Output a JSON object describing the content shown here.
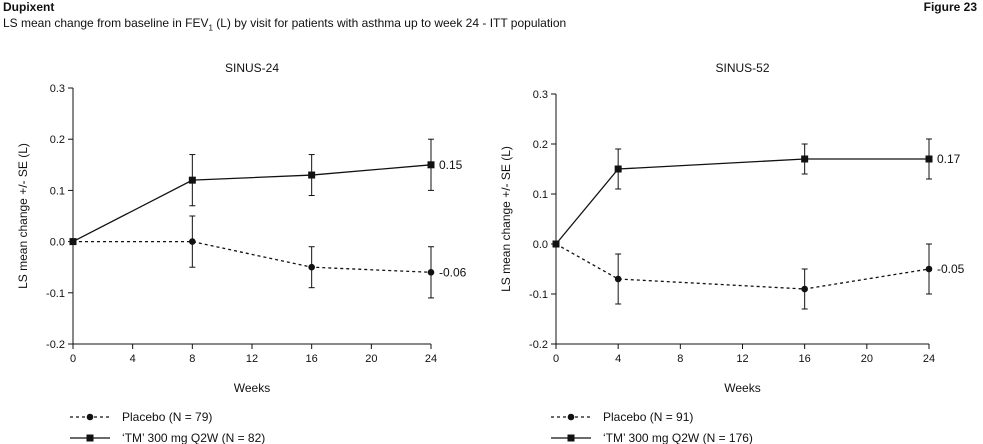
{
  "header": {
    "brand": "Dupixent",
    "figure": "Figure 23",
    "subtitle_pre": "LS mean change from baseline in FEV",
    "subtitle_sub": "1",
    "subtitle_post": " (L) by visit for patients with asthma up to week 24 - ITT population"
  },
  "chart_data": [
    {
      "type": "line",
      "title": "SINUS-24",
      "xlabel": "Weeks",
      "ylabel": "LS mean change +/- SE (L)",
      "xlim": [
        0,
        24
      ],
      "ylim": [
        -0.2,
        0.3
      ],
      "xticks": [
        0,
        4,
        8,
        12,
        16,
        20,
        24
      ],
      "xtick_labels": [
        "0",
        "4",
        "8",
        "12",
        "16",
        "20",
        "24"
      ],
      "yticks": [
        -0.2,
        -0.1,
        0.0,
        0.1,
        0.2,
        0.3
      ],
      "ytick_labels": [
        "-0.2",
        "-0.1",
        "0.0",
        "0.1",
        "0.2",
        "0.3"
      ],
      "grid": false,
      "legend_position": "bottom-left",
      "series": [
        {
          "name": "Placebo (N = 79)",
          "style": "dashed",
          "marker": "circle",
          "x": [
            0,
            8,
            16,
            24
          ],
          "y": [
            0.0,
            0.0,
            -0.05,
            -0.06
          ],
          "err": [
            0,
            0.05,
            0.04,
            0.05
          ],
          "end_label": "-0.06"
        },
        {
          "name": "‘TM’ 300 mg Q2W (N = 82)",
          "style": "solid",
          "marker": "square",
          "x": [
            0,
            8,
            16,
            24
          ],
          "y": [
            0.0,
            0.12,
            0.13,
            0.15
          ],
          "err": [
            0,
            0.05,
            0.04,
            0.05
          ],
          "end_label": "0.15"
        }
      ]
    },
    {
      "type": "line",
      "title": "SINUS-52",
      "xlabel": "Weeks",
      "ylabel": "LS mean change +/- SE (L)",
      "xlim": [
        0,
        24
      ],
      "ylim": [
        -0.2,
        0.3
      ],
      "xticks": [
        0,
        4,
        8,
        12,
        16,
        20,
        24
      ],
      "xtick_labels": [
        "0",
        "4",
        "8",
        "12",
        "16",
        "20",
        "24"
      ],
      "yticks": [
        -0.2,
        -0.1,
        0.0,
        0.1,
        0.2,
        0.3
      ],
      "ytick_labels": [
        "-0.2",
        "-0.1",
        "0.0",
        "0.1",
        "0.2",
        "0.3"
      ],
      "grid": false,
      "legend_position": "bottom-left",
      "series": [
        {
          "name": "Placebo (N = 91)",
          "style": "dashed",
          "marker": "circle",
          "x": [
            0,
            4,
            16,
            24
          ],
          "y": [
            0.0,
            -0.07,
            -0.09,
            -0.05
          ],
          "err": [
            0,
            0.05,
            0.04,
            0.05
          ],
          "end_label": "-0.05"
        },
        {
          "name": "‘TM’ 300 mg Q2W (N = 176)",
          "style": "solid",
          "marker": "square",
          "x": [
            0,
            4,
            16,
            24
          ],
          "y": [
            0.0,
            0.15,
            0.17,
            0.17
          ],
          "err": [
            0,
            0.04,
            0.03,
            0.04
          ],
          "end_label": "0.17"
        }
      ]
    }
  ]
}
